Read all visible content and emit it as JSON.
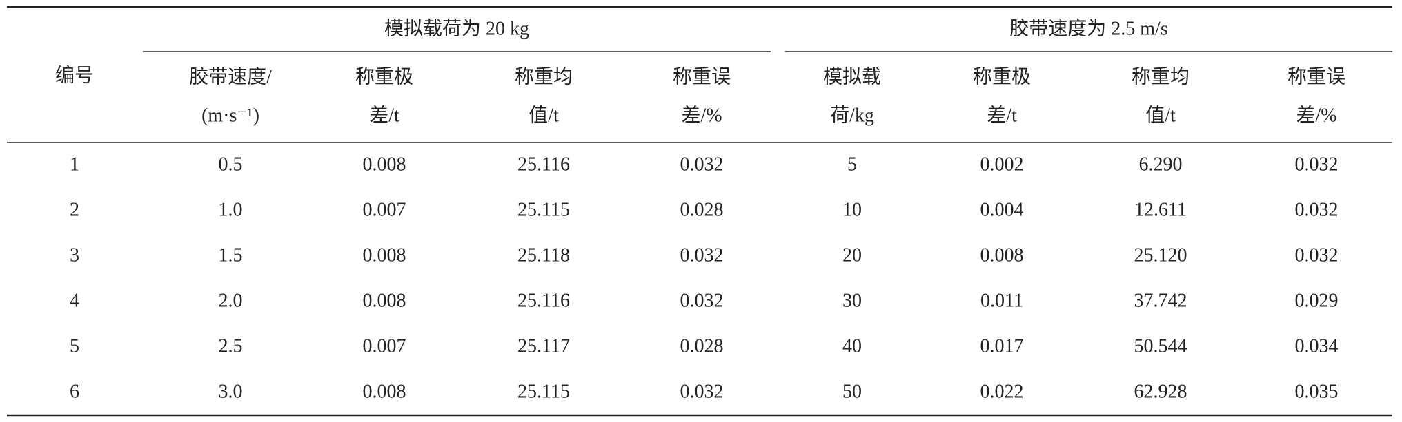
{
  "table": {
    "row_header": "编号",
    "groups": [
      "模拟载荷为 20 kg",
      "胶带速度为 2.5 m/s"
    ],
    "columns": [
      [
        "胶带速度/",
        "(m·s⁻¹)"
      ],
      [
        "称重极",
        "差/t"
      ],
      [
        "称重均",
        "值/t"
      ],
      [
        "称重误",
        "差/%"
      ],
      [
        "模拟载",
        "荷/kg"
      ],
      [
        "称重极",
        "差/t"
      ],
      [
        "称重均",
        "值/t"
      ],
      [
        "称重误",
        "差/%"
      ]
    ],
    "rows": [
      [
        "1",
        "0.5",
        "0.008",
        "25.116",
        "0.032",
        "5",
        "0.002",
        "6.290",
        "0.032"
      ],
      [
        "2",
        "1.0",
        "0.007",
        "25.115",
        "0.028",
        "10",
        "0.004",
        "12.611",
        "0.032"
      ],
      [
        "3",
        "1.5",
        "0.008",
        "25.118",
        "0.032",
        "20",
        "0.008",
        "25.120",
        "0.032"
      ],
      [
        "4",
        "2.0",
        "0.008",
        "25.116",
        "0.032",
        "30",
        "0.011",
        "37.742",
        "0.029"
      ],
      [
        "5",
        "2.5",
        "0.007",
        "25.117",
        "0.028",
        "40",
        "0.017",
        "50.544",
        "0.034"
      ],
      [
        "6",
        "3.0",
        "0.008",
        "25.115",
        "0.032",
        "50",
        "0.022",
        "62.928",
        "0.035"
      ]
    ]
  }
}
